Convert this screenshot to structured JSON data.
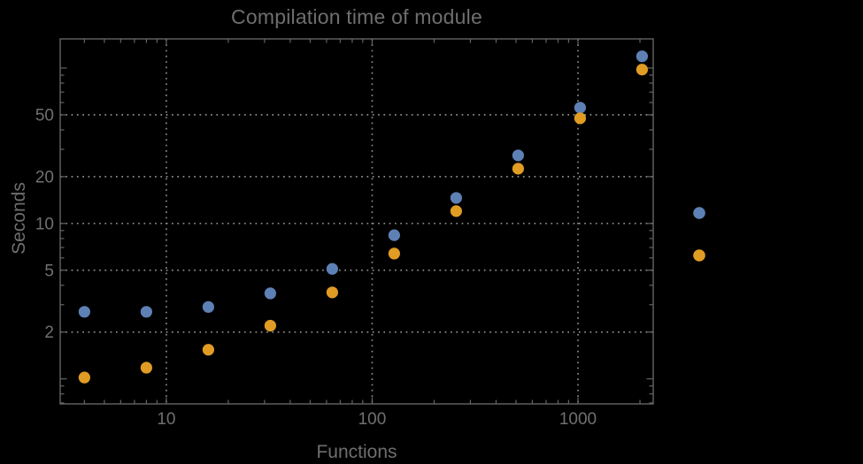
{
  "chart_data": {
    "type": "scatter",
    "title": "Compilation time of module",
    "xlabel": "Functions",
    "ylabel": "Seconds",
    "x_scale": "log",
    "y_scale": "log",
    "grid": "dotted",
    "x_range": [
      3.05,
      2320
    ],
    "y_range": [
      0.69,
      154
    ],
    "x_ticks": [
      {
        "v": 10,
        "label": "10"
      },
      {
        "v": 100,
        "label": "100"
      },
      {
        "v": 1000,
        "label": "1000"
      }
    ],
    "y_ticks": [
      {
        "v": 2,
        "label": "2"
      },
      {
        "v": 5,
        "label": "5"
      },
      {
        "v": 10,
        "label": "10"
      },
      {
        "v": 20,
        "label": "20"
      },
      {
        "v": 50,
        "label": "50"
      }
    ],
    "y_unlabeled_major_ticks": [
      1,
      100
    ],
    "x": [
      4,
      8,
      16,
      32,
      64,
      128,
      256,
      512,
      1024,
      2048
    ],
    "series": [
      {
        "name": "series-1-blue",
        "color": "#5e81b5",
        "values": [
          2.7,
          2.7,
          2.9,
          3.55,
          5.1,
          8.4,
          14.6,
          27.4,
          55.6,
          119
        ]
      },
      {
        "name": "series-2-orange",
        "color": "#e19c24",
        "values": [
          1.02,
          1.18,
          1.54,
          2.2,
          3.6,
          6.4,
          12.0,
          22.5,
          47.5,
          97.7
        ]
      }
    ],
    "legend": {
      "position": "outside-right",
      "markers": [
        {
          "series": "series-1-blue",
          "color": "#5e81b5",
          "label": ""
        },
        {
          "series": "series-2-orange",
          "color": "#e19c24",
          "label": ""
        }
      ]
    }
  },
  "colors": {
    "background": "#000000",
    "text": "#6e6e6e",
    "frame": "#646464",
    "grid": "#8c8c8c"
  }
}
